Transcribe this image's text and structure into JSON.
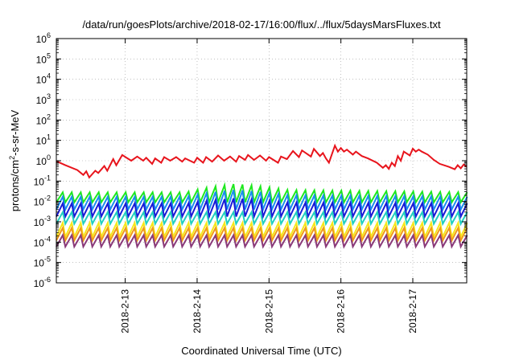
{
  "chart_data": {
    "type": "line",
    "title": "/data/run/goesPlots/archive/2018-02-17/16:00/flux/../flux/5daysMarsFluxes.txt",
    "xlabel": "Coordinated Universal Time (UTC)",
    "ylabel_parts": [
      "protons/cm",
      "2",
      "-s-sr-MeV"
    ],
    "y_scale": "log",
    "ylim": [
      1e-06,
      1000000.0
    ],
    "xlim": [
      "2018-02-12T01:00",
      "2018-02-17T18:00"
    ],
    "x_ticks": [
      {
        "date": "2018-02-13T00:00",
        "label": "2018-2-13"
      },
      {
        "date": "2018-02-14T00:00",
        "label": "2018-2-14"
      },
      {
        "date": "2018-02-15T00:00",
        "label": "2018-2-15"
      },
      {
        "date": "2018-02-16T00:00",
        "label": "2018-2-16"
      },
      {
        "date": "2018-02-17T00:00",
        "label": "2018-2-17"
      }
    ],
    "y_ticks": [
      {
        "value": 1e-06,
        "base": "10",
        "exp": "-6"
      },
      {
        "value": 1e-05,
        "base": "10",
        "exp": "-5"
      },
      {
        "value": 0.0001,
        "base": "10",
        "exp": "-4"
      },
      {
        "value": 0.001,
        "base": "10",
        "exp": "-3"
      },
      {
        "value": 0.01,
        "base": "10",
        "exp": "-2"
      },
      {
        "value": 0.1,
        "base": "10",
        "exp": "-1"
      },
      {
        "value": 1,
        "base": "10",
        "exp": "0"
      },
      {
        "value": 10,
        "base": "10",
        "exp": "1"
      },
      {
        "value": 100,
        "base": "10",
        "exp": "2"
      },
      {
        "value": 1000,
        "base": "10",
        "exp": "3"
      },
      {
        "value": 10000,
        "base": "10",
        "exp": "4"
      },
      {
        "value": 100000,
        "base": "10",
        "exp": "5"
      },
      {
        "value": 1000000,
        "base": "10",
        "exp": "6"
      }
    ],
    "grid": true,
    "series": [
      {
        "color": "#e8141c",
        "width": 2,
        "points": [
          [
            "2018-02-12T01:00",
            0.95
          ],
          [
            "2018-02-12T04:00",
            0.6
          ],
          [
            "2018-02-12T08:00",
            0.35
          ],
          [
            "2018-02-12T10:00",
            0.2
          ],
          [
            "2018-02-12T11:00",
            0.3
          ],
          [
            "2018-02-12T12:00",
            0.15
          ],
          [
            "2018-02-12T14:00",
            0.32
          ],
          [
            "2018-02-12T15:00",
            0.25
          ],
          [
            "2018-02-12T17:00",
            0.55
          ],
          [
            "2018-02-12T18:00",
            0.32
          ],
          [
            "2018-02-12T20:00",
            1.2
          ],
          [
            "2018-02-12T21:00",
            0.6
          ],
          [
            "2018-02-12T23:00",
            1.9
          ],
          [
            "2018-02-13T02:00",
            1.0
          ],
          [
            "2018-02-13T04:00",
            1.6
          ],
          [
            "2018-02-13T06:00",
            1.0
          ],
          [
            "2018-02-13T07:00",
            1.4
          ],
          [
            "2018-02-13T09:00",
            0.7
          ],
          [
            "2018-02-13T10:00",
            1.3
          ],
          [
            "2018-02-13T12:00",
            0.8
          ],
          [
            "2018-02-13T13:00",
            1.5
          ],
          [
            "2018-02-13T15:00",
            1.0
          ],
          [
            "2018-02-13T17:00",
            1.5
          ],
          [
            "2018-02-13T19:00",
            0.9
          ],
          [
            "2018-02-13T20:00",
            1.3
          ],
          [
            "2018-02-13T23:00",
            0.8
          ],
          [
            "2018-02-14T00:00",
            1.4
          ],
          [
            "2018-02-14T02:00",
            0.8
          ],
          [
            "2018-02-14T03:00",
            1.5
          ],
          [
            "2018-02-14T05:00",
            0.9
          ],
          [
            "2018-02-14T07:00",
            1.8
          ],
          [
            "2018-02-14T09:00",
            1.0
          ],
          [
            "2018-02-14T11:00",
            1.6
          ],
          [
            "2018-02-14T13:00",
            0.9
          ],
          [
            "2018-02-14T14:00",
            1.7
          ],
          [
            "2018-02-14T16:00",
            1.1
          ],
          [
            "2018-02-14T17:00",
            1.9
          ],
          [
            "2018-02-14T19:00",
            1.1
          ],
          [
            "2018-02-14T21:00",
            1.8
          ],
          [
            "2018-02-14T23:00",
            1.0
          ],
          [
            "2018-02-15T00:00",
            1.5
          ],
          [
            "2018-02-15T03:00",
            0.8
          ],
          [
            "2018-02-15T04:00",
            1.6
          ],
          [
            "2018-02-15T06:00",
            1.2
          ],
          [
            "2018-02-15T08:00",
            3.0
          ],
          [
            "2018-02-15T10:00",
            1.5
          ],
          [
            "2018-02-15T11:00",
            3.2
          ],
          [
            "2018-02-15T14:00",
            1.6
          ],
          [
            "2018-02-15T15:00",
            3.8
          ],
          [
            "2018-02-15T17:00",
            1.7
          ],
          [
            "2018-02-15T18:00",
            2.4
          ],
          [
            "2018-02-15T19:00",
            1.3
          ],
          [
            "2018-02-15T20:00",
            0.8
          ],
          [
            "2018-02-15T22:00",
            5.5
          ],
          [
            "2018-02-15T23:00",
            2.8
          ],
          [
            "2018-02-16T00:00",
            4.2
          ],
          [
            "2018-02-16T01:00",
            2.8
          ],
          [
            "2018-02-16T02:00",
            3.5
          ],
          [
            "2018-02-16T04:00",
            2.0
          ],
          [
            "2018-02-16T05:00",
            2.8
          ],
          [
            "2018-02-16T07:00",
            1.7
          ],
          [
            "2018-02-16T09:00",
            1.3
          ],
          [
            "2018-02-16T12:00",
            0.8
          ],
          [
            "2018-02-16T14:00",
            0.45
          ],
          [
            "2018-02-16T15:00",
            0.6
          ],
          [
            "2018-02-16T16:00",
            0.4
          ],
          [
            "2018-02-16T17:00",
            0.8
          ],
          [
            "2018-02-16T18:00",
            0.55
          ],
          [
            "2018-02-16T19:00",
            1.7
          ],
          [
            "2018-02-16T20:00",
            1.0
          ],
          [
            "2018-02-16T21:00",
            2.8
          ],
          [
            "2018-02-16T23:00",
            1.8
          ],
          [
            "2018-02-17T00:00",
            3.9
          ],
          [
            "2018-02-17T01:00",
            2.8
          ],
          [
            "2018-02-17T02:00",
            3.5
          ],
          [
            "2018-02-17T03:00",
            2.8
          ],
          [
            "2018-02-17T05:00",
            2.0
          ],
          [
            "2018-02-17T07:00",
            1.1
          ],
          [
            "2018-02-17T09:00",
            0.7
          ],
          [
            "2018-02-17T12:00",
            0.5
          ],
          [
            "2018-02-17T14:00",
            0.38
          ],
          [
            "2018-02-17T15:00",
            0.6
          ],
          [
            "2018-02-17T16:00",
            0.42
          ],
          [
            "2018-02-17T17:00",
            0.65
          ],
          [
            "2018-02-17T18:00",
            0.5
          ]
        ]
      },
      {
        "color": "#1ee81e",
        "width": 2,
        "low": 0.009,
        "high": 0.028,
        "period_hours": 3.0,
        "high_trend": [
          [
            0,
            1.0
          ],
          [
            0.3,
            1.0
          ],
          [
            0.42,
            2.6
          ],
          [
            0.55,
            1.3
          ],
          [
            1,
            1.0
          ]
        ]
      },
      {
        "color": "#1a8cf0",
        "width": 2,
        "low": 0.004,
        "high": 0.017,
        "period_hours": 3.0,
        "high_trend": [
          [
            0,
            1.0
          ],
          [
            0.3,
            1.0
          ],
          [
            0.42,
            2.2
          ],
          [
            0.55,
            1.2
          ],
          [
            1,
            1.0
          ]
        ]
      },
      {
        "color": "#1a1ad6",
        "width": 2,
        "low": 0.0018,
        "high": 0.008,
        "period_hours": 3.0,
        "high_trend": [
          [
            0,
            1.0
          ],
          [
            0.3,
            1.0
          ],
          [
            0.42,
            1.8
          ],
          [
            0.55,
            1.1
          ],
          [
            1,
            1.0
          ]
        ]
      },
      {
        "color": "#20cfc0",
        "width": 2,
        "low": 0.0008,
        "high": 0.003,
        "period_hours": 3.0,
        "high_trend": [
          [
            0,
            1.0
          ],
          [
            1,
            1.0
          ]
        ]
      },
      {
        "color": "#f6e81a",
        "width": 2,
        "low": 0.00018,
        "high": 0.0009,
        "period_hours": 3.0,
        "high_trend": [
          [
            0,
            1.0
          ],
          [
            1,
            1.0
          ]
        ]
      },
      {
        "color": "#f09a1a",
        "width": 2,
        "low": 0.00012,
        "high": 0.0005,
        "period_hours": 3.0,
        "high_trend": [
          [
            0,
            1.0
          ],
          [
            1,
            1.0
          ]
        ]
      },
      {
        "color": "#8a3a7a",
        "width": 2,
        "low": 6e-05,
        "high": 0.00022,
        "period_hours": 3.0,
        "high_trend": [
          [
            0,
            1.0
          ],
          [
            1,
            1.0
          ]
        ]
      }
    ]
  }
}
